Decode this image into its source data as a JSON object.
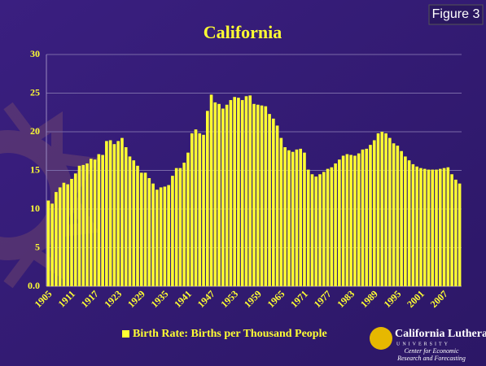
{
  "chart_data": {
    "type": "bar",
    "title": "California",
    "figure_label": "Figure 3",
    "categories": [
      "1905",
      null,
      null,
      null,
      null,
      null,
      "1911",
      null,
      null,
      null,
      null,
      null,
      "1917",
      null,
      null,
      null,
      null,
      null,
      "1923",
      null,
      null,
      null,
      null,
      null,
      "1929",
      null,
      null,
      null,
      null,
      null,
      "1935",
      null,
      null,
      null,
      null,
      null,
      "1941",
      null,
      null,
      null,
      null,
      null,
      "1947",
      null,
      null,
      null,
      null,
      null,
      "1953",
      null,
      null,
      null,
      null,
      null,
      "1959",
      null,
      null,
      null,
      null,
      null,
      "1965",
      null,
      null,
      null,
      null,
      null,
      "1971",
      null,
      null,
      null,
      null,
      null,
      "1977",
      null,
      null,
      null,
      null,
      null,
      "1983",
      null,
      null,
      null,
      null,
      null,
      "1989",
      null,
      null,
      null,
      null,
      null,
      "1995",
      null,
      null,
      null,
      null,
      null,
      "2001",
      null,
      null,
      null,
      null,
      null,
      "2007",
      null,
      null,
      null,
      null
    ],
    "series": [
      {
        "name": "Birth Rate: Births per Thousand People",
        "color": "#ffff33",
        "values": [
          11.1,
          10.7,
          12.2,
          12.8,
          13.4,
          13.2,
          13.9,
          14.6,
          15.6,
          15.7,
          15.9,
          16.5,
          16.4,
          17.1,
          17.0,
          18.8,
          18.9,
          18.4,
          18.8,
          19.2,
          18.0,
          16.8,
          16.3,
          15.6,
          14.7,
          14.7,
          14.0,
          13.3,
          12.5,
          12.8,
          12.9,
          13.1,
          14.3,
          15.3,
          15.3,
          16.0,
          17.3,
          19.8,
          20.3,
          19.8,
          19.6,
          22.7,
          24.8,
          23.8,
          23.6,
          23.0,
          23.5,
          24.1,
          24.5,
          24.4,
          24.1,
          24.6,
          24.7,
          23.6,
          23.5,
          23.4,
          23.3,
          22.3,
          21.7,
          20.8,
          19.2,
          18.0,
          17.6,
          17.4,
          17.7,
          17.8,
          17.3,
          15.1,
          14.5,
          14.2,
          14.5,
          14.8,
          15.2,
          15.4,
          15.9,
          16.4,
          16.9,
          17.1,
          17.0,
          16.9,
          17.2,
          17.7,
          17.8,
          18.3,
          18.9,
          19.8,
          20.0,
          19.8,
          19.2,
          18.5,
          18.2,
          17.5,
          16.8,
          16.3,
          15.8,
          15.5,
          15.3,
          15.2,
          15.1,
          15.1,
          15.1,
          15.2,
          15.3,
          15.4,
          14.5,
          13.8,
          13.3
        ]
      }
    ],
    "ylim": [
      0,
      30
    ],
    "yticks": [
      {
        "value": 0,
        "label": "0.0"
      },
      5,
      10,
      15,
      20,
      25,
      30
    ],
    "grid": true,
    "logo": {
      "name": "California Lutheran",
      "subname": "UNIVERSITY",
      "line1": "Center for Economic",
      "line2": "Research and Forecasting"
    }
  }
}
